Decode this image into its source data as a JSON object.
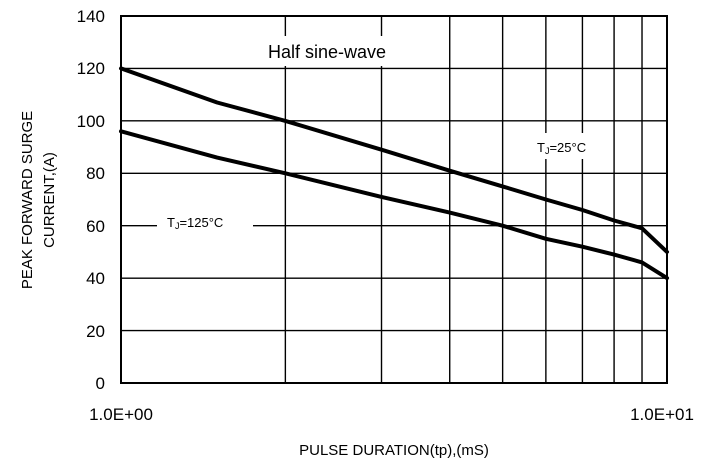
{
  "chart_data": {
    "type": "line",
    "x_scale": "log",
    "xlim": [
      1,
      10
    ],
    "ylim": [
      0,
      140
    ],
    "grid": true,
    "xlabel": "PULSE DURATION(tp),(mS)",
    "ylabel_lines": [
      "PEAK FORWARD SURGE",
      "CURRENT,(A)"
    ],
    "x_tick_labels": [
      "1.0E+00",
      "1.0E+01"
    ],
    "y_ticks": [
      0,
      20,
      40,
      60,
      80,
      100,
      120,
      140
    ],
    "annotations": {
      "waveform": "Half sine-wave",
      "tj25": "TJ=25°C",
      "tj125": "TJ=125°C"
    },
    "series": [
      {
        "name": "TJ=25°C",
        "x": [
          1,
          1.5,
          2,
          3,
          4,
          5,
          6,
          7,
          8,
          9,
          10
        ],
        "y": [
          120,
          107,
          100,
          89,
          81,
          75,
          70,
          66,
          62,
          59,
          50
        ]
      },
      {
        "name": "TJ=125°C",
        "x": [
          1,
          1.5,
          2,
          3,
          4,
          5,
          6,
          7,
          8,
          9,
          10
        ],
        "y": [
          96,
          86,
          80,
          71,
          65,
          60,
          55,
          52,
          49,
          46,
          40
        ]
      }
    ]
  }
}
